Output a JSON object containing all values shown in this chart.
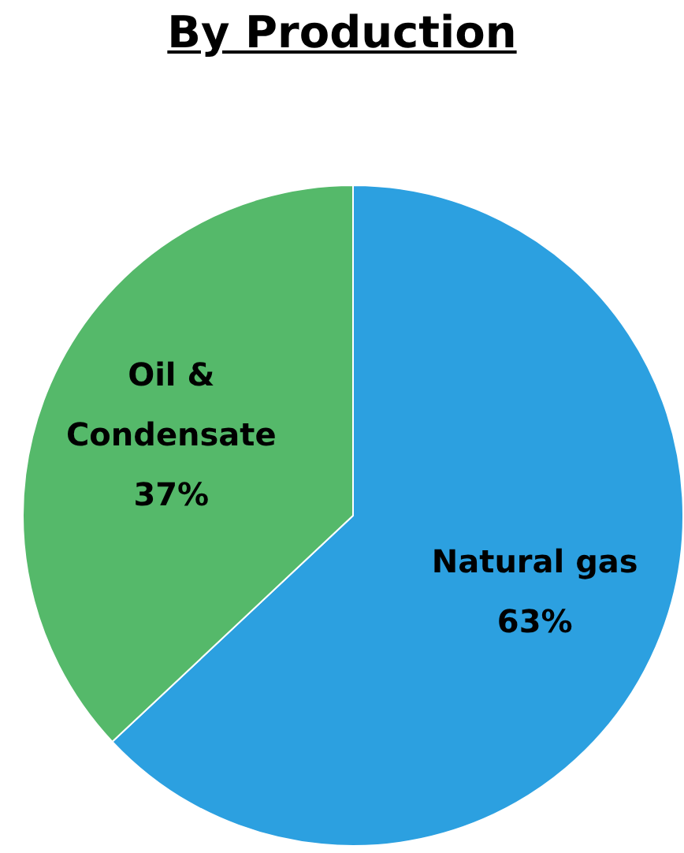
{
  "chart_data": {
    "type": "pie",
    "title": "By Production",
    "categories": [
      "Natural gas",
      "Oil & Condensate"
    ],
    "values": [
      63,
      37
    ],
    "colors": [
      "#2ca0e0",
      "#55b96a"
    ],
    "value_labels": [
      "63%",
      "37%"
    ],
    "legend": false
  }
}
